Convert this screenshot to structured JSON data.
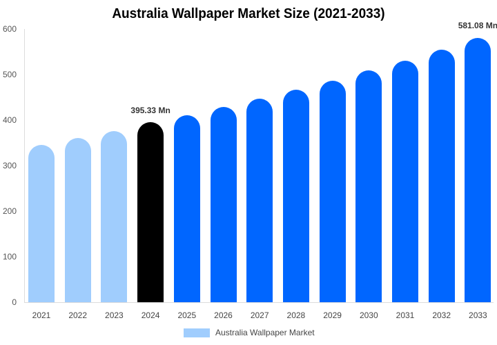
{
  "chart_data": {
    "type": "bar",
    "title": "Australia Wallpaper Market Size (2021-2033)",
    "xlabel": "",
    "ylabel": "",
    "ylim": [
      0,
      600
    ],
    "yticks": [
      0,
      100,
      200,
      300,
      400,
      500,
      600
    ],
    "grid": false,
    "legend_position": "bottom",
    "categories": [
      "2021",
      "2022",
      "2023",
      "2024",
      "2025",
      "2026",
      "2027",
      "2028",
      "2029",
      "2030",
      "2031",
      "2032",
      "2033"
    ],
    "series": [
      {
        "name": "Australia Wallpaper Market",
        "values": [
          345,
          360,
          376,
          395.33,
          411,
          429,
          447,
          467,
          486,
          509,
          530,
          555,
          581.08
        ]
      }
    ],
    "bar_colors": [
      "#a0cdfd",
      "#a0cdfd",
      "#a0cdfd",
      "#000000",
      "#0066ff",
      "#0066ff",
      "#0066ff",
      "#0066ff",
      "#0066ff",
      "#0066ff",
      "#0066ff",
      "#0066ff",
      "#0066ff"
    ],
    "annotations": [
      {
        "category": "2024",
        "text": "395.33 Mn"
      },
      {
        "category": "2033",
        "text": "581.08 Mn"
      }
    ]
  },
  "legend": {
    "label": "Australia Wallpaper Market",
    "color": "#a0cdfd"
  }
}
